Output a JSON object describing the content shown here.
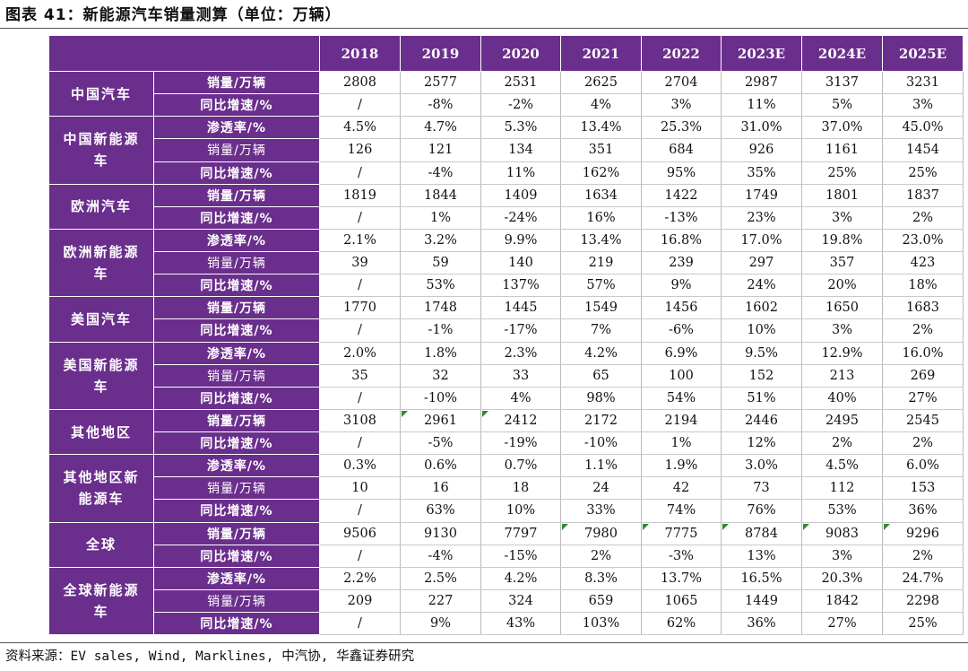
{
  "caption": "图表 41：新能源汽车销量测算（单位：万辆）",
  "source": "资料来源：EV sales, Wind, Marklines, 中汽协, 华鑫证券研究",
  "years": [
    "2018",
    "2019",
    "2020",
    "2021",
    "2022",
    "2023E",
    "2024E",
    "2025E"
  ],
  "regions": [
    {
      "name": "中国汽车",
      "rows": [
        {
          "metric": "销量/万辆",
          "bold": true,
          "values": [
            "2808",
            "2577",
            "2531",
            "2625",
            "2704",
            "2987",
            "3137",
            "3231"
          ]
        },
        {
          "metric": "同比增速/%",
          "bold": true,
          "values": [
            "/",
            "-8%",
            "-2%",
            "4%",
            "3%",
            "11%",
            "5%",
            "3%"
          ]
        }
      ]
    },
    {
      "name": "中国新能源车",
      "rows": [
        {
          "metric": "渗透率/%",
          "bold": true,
          "values": [
            "4.5%",
            "4.7%",
            "5.3%",
            "13.4%",
            "25.3%",
            "31.0%",
            "37.0%",
            "45.0%"
          ]
        },
        {
          "metric": "销量/万辆",
          "bold": false,
          "values": [
            "126",
            "121",
            "134",
            "351",
            "684",
            "926",
            "1161",
            "1454"
          ]
        },
        {
          "metric": "同比增速/%",
          "bold": true,
          "values": [
            "/",
            "-4%",
            "11%",
            "162%",
            "95%",
            "35%",
            "25%",
            "25%"
          ]
        }
      ]
    },
    {
      "name": "欧洲汽车",
      "rows": [
        {
          "metric": "销量/万辆",
          "bold": true,
          "values": [
            "1819",
            "1844",
            "1409",
            "1634",
            "1422",
            "1749",
            "1801",
            "1837"
          ]
        },
        {
          "metric": "同比增速/%",
          "bold": true,
          "values": [
            "/",
            "1%",
            "-24%",
            "16%",
            "-13%",
            "23%",
            "3%",
            "2%"
          ]
        }
      ]
    },
    {
      "name": "欧洲新能源车",
      "rows": [
        {
          "metric": "渗透率/%",
          "bold": true,
          "values": [
            "2.1%",
            "3.2%",
            "9.9%",
            "13.4%",
            "16.8%",
            "17.0%",
            "19.8%",
            "23.0%"
          ]
        },
        {
          "metric": "销量/万辆",
          "bold": false,
          "values": [
            "39",
            "59",
            "140",
            "219",
            "239",
            "297",
            "357",
            "423"
          ]
        },
        {
          "metric": "同比增速/%",
          "bold": true,
          "values": [
            "/",
            "53%",
            "137%",
            "57%",
            "9%",
            "24%",
            "20%",
            "18%"
          ]
        }
      ]
    },
    {
      "name": "美国汽车",
      "rows": [
        {
          "metric": "销量/万辆",
          "bold": true,
          "values": [
            "1770",
            "1748",
            "1445",
            "1549",
            "1456",
            "1602",
            "1650",
            "1683"
          ]
        },
        {
          "metric": "同比增速/%",
          "bold": true,
          "values": [
            "/",
            "-1%",
            "-17%",
            "7%",
            "-6%",
            "10%",
            "3%",
            "2%"
          ]
        }
      ]
    },
    {
      "name": "美国新能源车",
      "rows": [
        {
          "metric": "渗透率/%",
          "bold": true,
          "values": [
            "2.0%",
            "1.8%",
            "2.3%",
            "4.2%",
            "6.9%",
            "9.5%",
            "12.9%",
            "16.0%"
          ]
        },
        {
          "metric": "销量/万辆",
          "bold": false,
          "values": [
            "35",
            "32",
            "33",
            "65",
            "100",
            "152",
            "213",
            "269"
          ]
        },
        {
          "metric": "同比增速/%",
          "bold": true,
          "values": [
            "/",
            "-10%",
            "4%",
            "98%",
            "54%",
            "51%",
            "40%",
            "27%"
          ]
        }
      ]
    },
    {
      "name": "其他地区",
      "rows": [
        {
          "metric": "销量/万辆",
          "bold": true,
          "ticks": [
            1,
            2
          ],
          "values": [
            "3108",
            "2961",
            "2412",
            "2172",
            "2194",
            "2446",
            "2495",
            "2545"
          ]
        },
        {
          "metric": "同比增速/%",
          "bold": true,
          "values": [
            "/",
            "-5%",
            "-19%",
            "-10%",
            "1%",
            "12%",
            "2%",
            "2%"
          ]
        }
      ]
    },
    {
      "name": "其他地区新能源车",
      "rows": [
        {
          "metric": "渗透率/%",
          "bold": true,
          "values": [
            "0.3%",
            "0.6%",
            "0.7%",
            "1.1%",
            "1.9%",
            "3.0%",
            "4.5%",
            "6.0%"
          ]
        },
        {
          "metric": "销量/万辆",
          "bold": false,
          "values": [
            "10",
            "16",
            "18",
            "24",
            "42",
            "73",
            "112",
            "153"
          ]
        },
        {
          "metric": "同比增速/%",
          "bold": true,
          "values": [
            "/",
            "63%",
            "10%",
            "33%",
            "74%",
            "76%",
            "53%",
            "36%"
          ]
        }
      ]
    },
    {
      "name": "全球",
      "rows": [
        {
          "metric": "销量/万辆",
          "bold": true,
          "ticks": [
            3,
            4,
            5,
            6,
            7
          ],
          "values": [
            "9506",
            "9130",
            "7797",
            "7980",
            "7775",
            "8784",
            "9083",
            "9296"
          ]
        },
        {
          "metric": "同比增速/%",
          "bold": true,
          "values": [
            "/",
            "-4%",
            "-15%",
            "2%",
            "-3%",
            "13%",
            "3%",
            "2%"
          ]
        }
      ]
    },
    {
      "name": "全球新能源车",
      "rows": [
        {
          "metric": "渗透率/%",
          "bold": true,
          "values": [
            "2.2%",
            "2.5%",
            "4.2%",
            "8.3%",
            "13.7%",
            "16.5%",
            "20.3%",
            "24.7%"
          ]
        },
        {
          "metric": "销量/万辆",
          "bold": false,
          "values": [
            "209",
            "227",
            "324",
            "659",
            "1065",
            "1449",
            "1842",
            "2298"
          ]
        },
        {
          "metric": "同比增速/%",
          "bold": true,
          "values": [
            "/",
            "9%",
            "43%",
            "103%",
            "62%",
            "36%",
            "27%",
            "25%"
          ]
        }
      ]
    }
  ]
}
